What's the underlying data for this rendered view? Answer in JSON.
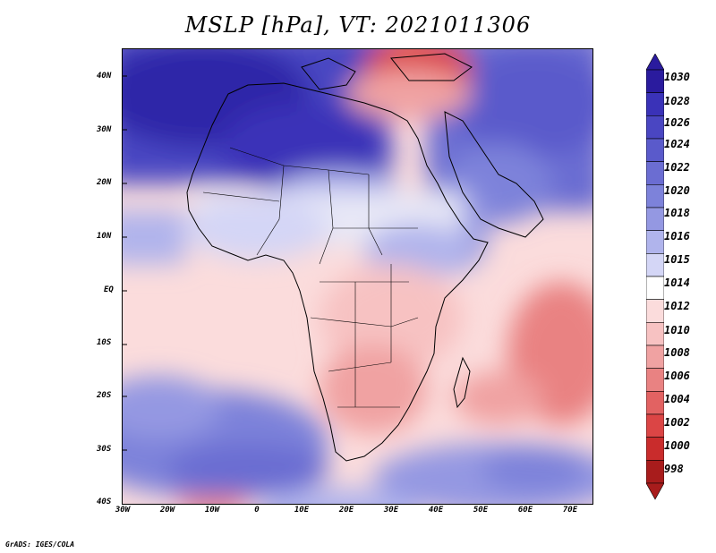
{
  "title": "MSLP [hPa], VT: 2021011306",
  "credit": "GrADS: IGES/COLA",
  "map": {
    "variable": "MSLP",
    "units": "hPa",
    "valid_time": "2021011306",
    "region": "Africa and surrounding oceans",
    "lon_range": [
      -30,
      75
    ],
    "lat_range": [
      -40,
      45
    ]
  },
  "axes": {
    "lat_ticks": [
      "40N",
      "30N",
      "20N",
      "10N",
      "EQ",
      "10S",
      "20S",
      "30S",
      "40S"
    ],
    "lon_ticks": [
      "30W",
      "20W",
      "10W",
      "0",
      "10E",
      "20E",
      "30E",
      "40E",
      "50E",
      "60E",
      "70E"
    ]
  },
  "colorbar": {
    "levels": [
      "1030",
      "1028",
      "1026",
      "1024",
      "1022",
      "1020",
      "1018",
      "1016",
      "1015",
      "1014",
      "1012",
      "1010",
      "1008",
      "1006",
      "1004",
      "1002",
      "1000",
      "998"
    ],
    "colors": [
      "#2a1b9e",
      "#3a32b8",
      "#4a46c2",
      "#5a5acb",
      "#6b6dd2",
      "#7d82da",
      "#9498e2",
      "#b0b4ec",
      "#d4d6f6",
      "#ffffff",
      "#fbdcdc",
      "#f7c2c2",
      "#f0a2a2",
      "#e98282",
      "#e26262",
      "#db4545",
      "#c92c2c",
      "#a81c1c"
    ]
  },
  "colors": {
    "high": "#2a1b9e",
    "low": "#a81c1c",
    "neutral": "#ffffff"
  }
}
